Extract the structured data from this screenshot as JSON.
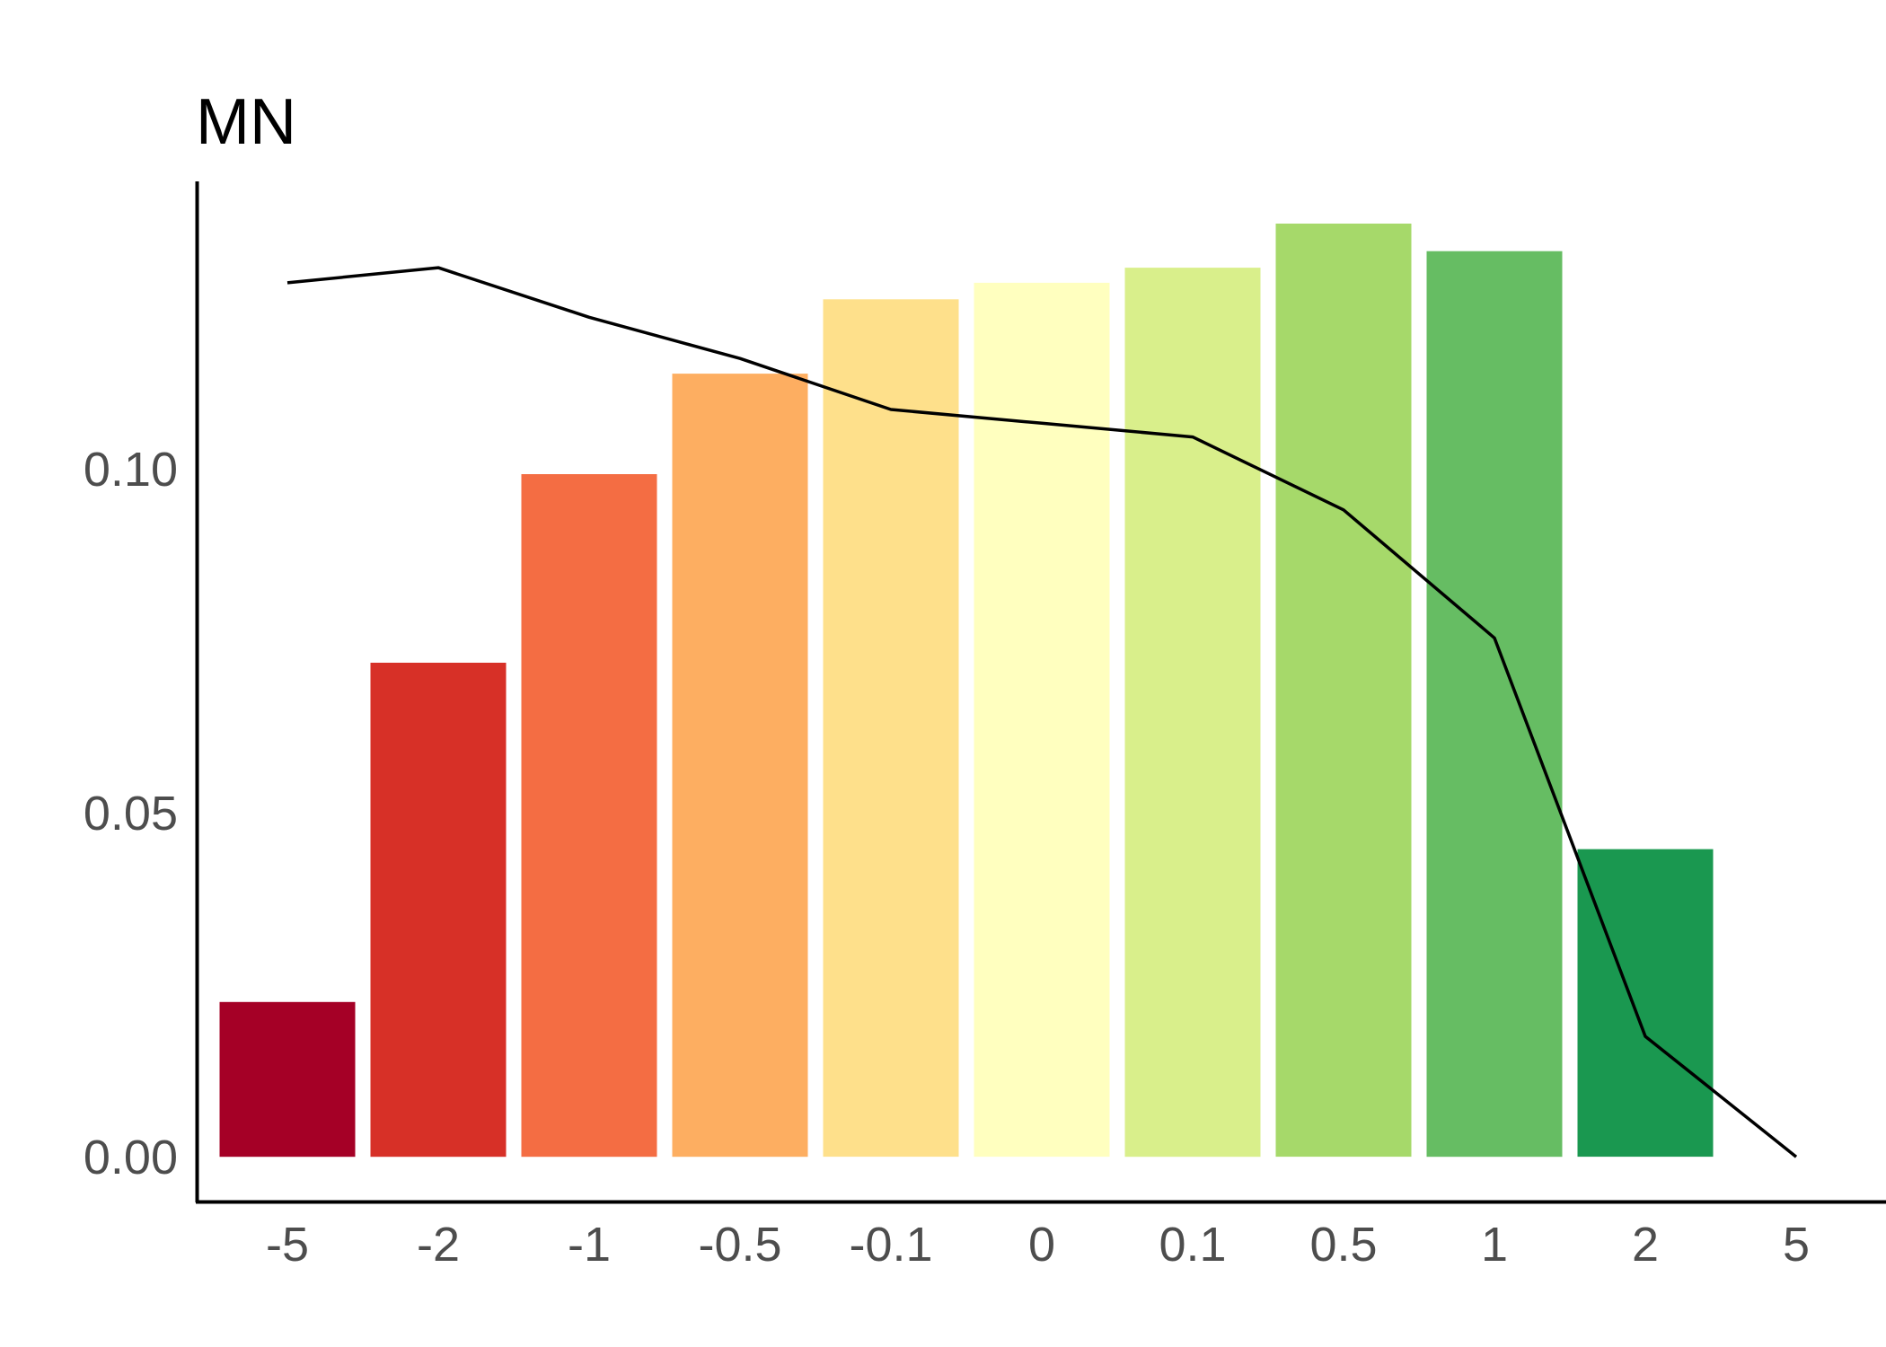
{
  "chart_data": {
    "type": "bar",
    "title": "MN",
    "xlabel": "",
    "ylabel": "",
    "categories": [
      "-5",
      "-2",
      "-1",
      "-0.5",
      "-0.1",
      "0",
      "0.1",
      "0.5",
      "1",
      "2",
      "5"
    ],
    "ylim": [
      -0.0065,
      0.142
    ],
    "yticks": [
      0.0,
      0.05,
      0.1
    ],
    "ytick_labels": [
      "0.00",
      "0.05",
      "0.10"
    ],
    "grid": false,
    "legend": "none",
    "series": [
      {
        "type": "bar",
        "values": [
          0.0225,
          0.0718,
          0.0992,
          0.1138,
          0.1246,
          0.127,
          0.1292,
          0.1356,
          0.1316,
          0.0447,
          null
        ],
        "colors": [
          "#a50026",
          "#d73027",
          "#f46d43",
          "#fdae61",
          "#fee08b",
          "#ffffbf",
          "#d9ef8b",
          "#a6d96a",
          "#66bd63",
          "#1a9850",
          "#006837"
        ]
      },
      {
        "type": "line",
        "color": "#000000",
        "values": [
          0.127,
          0.1292,
          0.122,
          0.116,
          0.1086,
          0.1066,
          0.1046,
          0.094,
          0.0754,
          0.0175,
          0.0
        ]
      }
    ]
  }
}
